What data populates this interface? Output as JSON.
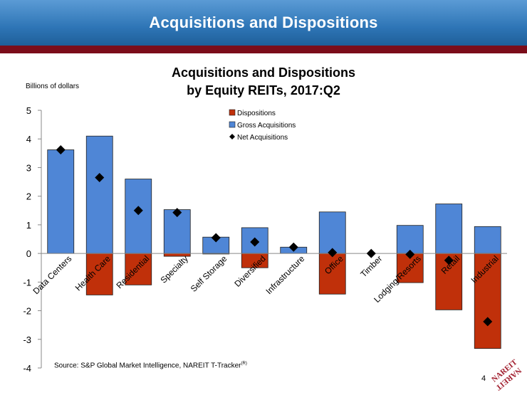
{
  "page": {
    "banner_title": "Acquisitions and Dispositions",
    "y_unit_label": "Billions of dollars",
    "source_text": "Source: S&P Global Market Intelligence, NAREIT T-Tracker",
    "source_superscript": "(R)",
    "page_number": "4",
    "logo_text": "NAREIT",
    "colors": {
      "banner": "#2e75b6",
      "stripe": "#7b0d1a",
      "dispositions": "#c0300a",
      "acquisitions": "#4f86d6",
      "net": "#000000",
      "logo": "#a01c2c"
    }
  },
  "chart_data": {
    "type": "bar",
    "title_lines": [
      "Acquisitions and Dispositions",
      "by Equity REITs, 2017:Q2"
    ],
    "ylim": [
      -4,
      5
    ],
    "yticks": [
      5,
      4,
      3,
      2,
      1,
      0,
      -1,
      -2,
      -3,
      -4
    ],
    "legend_position": "top-center",
    "categories": [
      "Data Centers",
      "Health Care",
      "Residential",
      "Specialty",
      "Self Storage",
      "Diversified",
      "Infrastructure",
      "Office",
      "Timber",
      "Lodging/Resorts",
      "Retail",
      "Industrial"
    ],
    "series": [
      {
        "name": "Dispositions",
        "kind": "bar",
        "color": "#c0300a",
        "values": [
          0,
          -1.45,
          -1.1,
          -0.1,
          -0.02,
          -0.5,
          0,
          -1.42,
          0,
          -1.02,
          -1.97,
          -3.32
        ]
      },
      {
        "name": "Gross Acquisitions",
        "kind": "bar",
        "color": "#4f86d6",
        "values": [
          3.62,
          4.1,
          2.6,
          1.53,
          0.57,
          0.9,
          0.22,
          1.45,
          0,
          0.98,
          1.73,
          0.94
        ]
      },
      {
        "name": "Net Acquisitions",
        "kind": "marker",
        "color": "#000000",
        "values": [
          3.62,
          2.65,
          1.5,
          1.43,
          0.55,
          0.4,
          0.22,
          0.03,
          0,
          -0.03,
          -0.24,
          -2.38
        ]
      }
    ]
  }
}
